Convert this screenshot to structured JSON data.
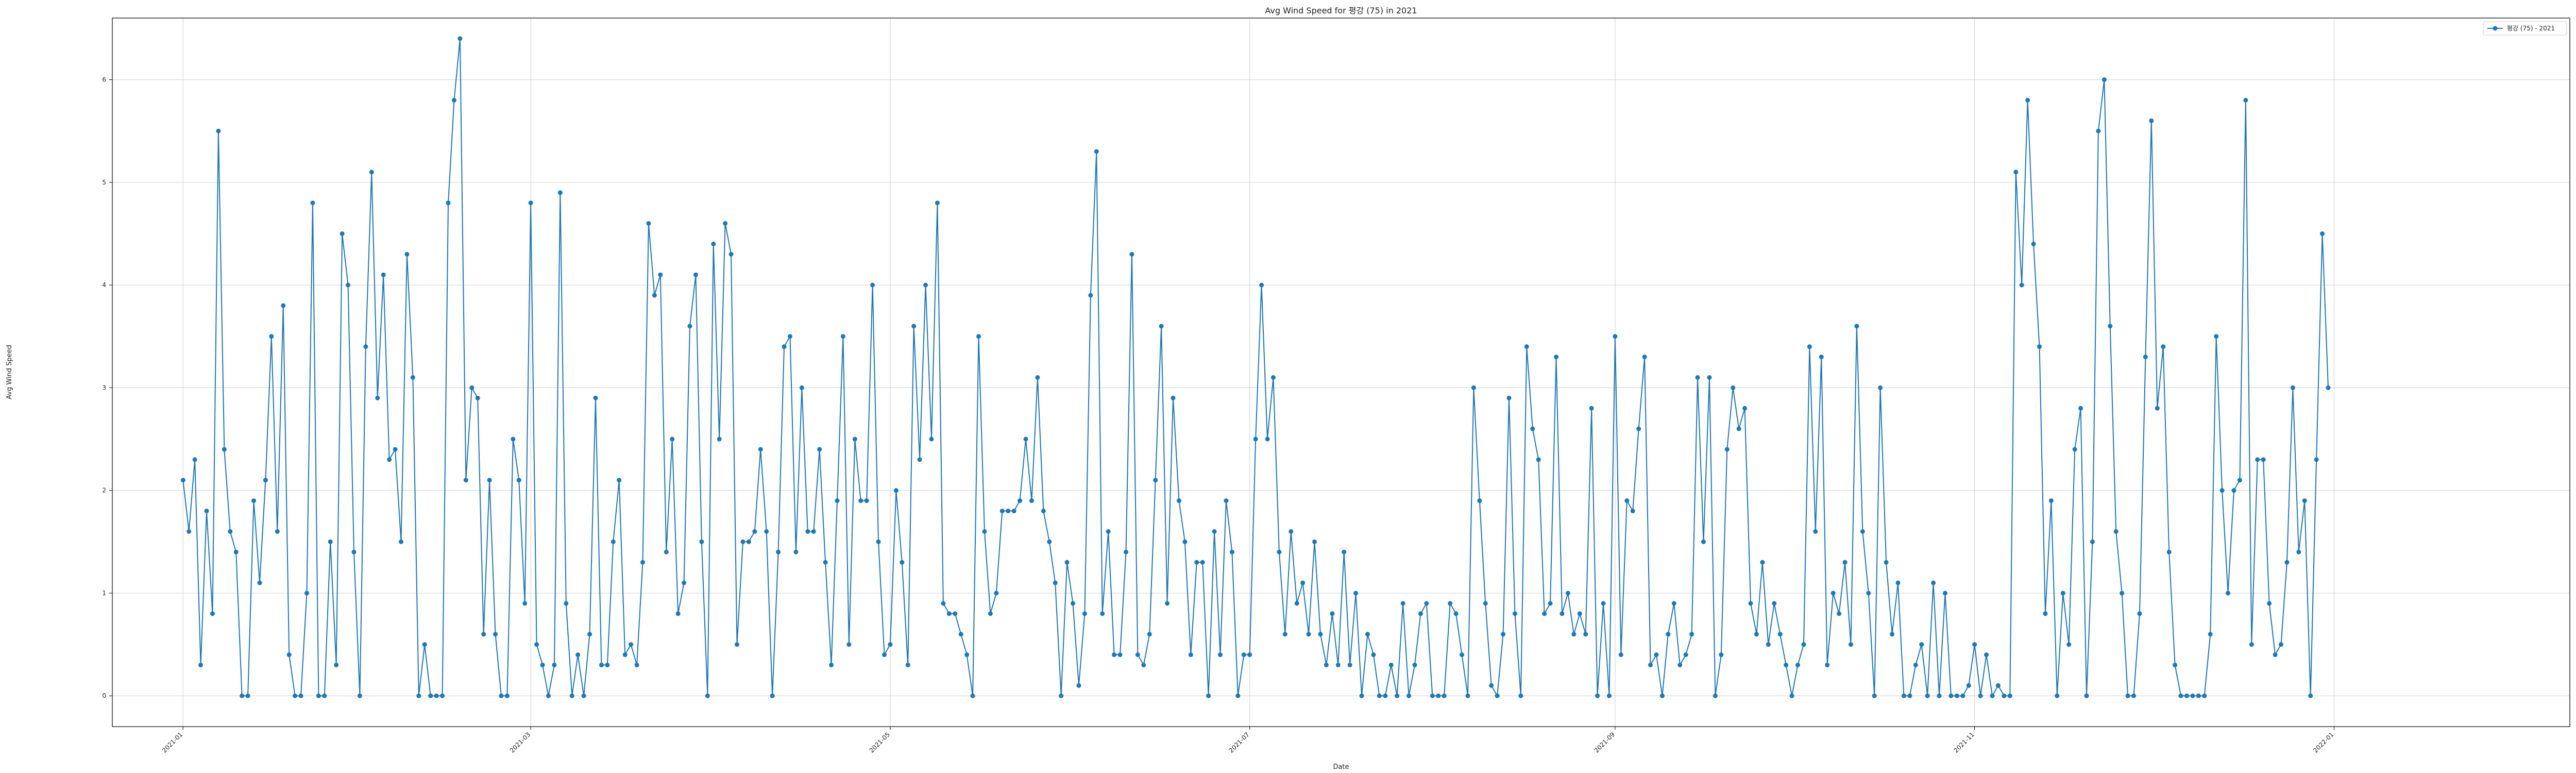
{
  "colors": {
    "line": "#1f77b4",
    "grid": "#d0d0d0",
    "axis": "#000000"
  },
  "chart_data": {
    "type": "line",
    "title": "Avg Wind Speed for 평강 (75) in 2021",
    "xlabel": "Date",
    "ylabel": "Avg Wind Speed",
    "grid": true,
    "legend_position": "top-right",
    "xlim": [
      "2020-12-20",
      "2022-02-10"
    ],
    "ylim": [
      -0.3,
      6.6
    ],
    "yticks": [
      0,
      1,
      2,
      3,
      4,
      5,
      6
    ],
    "xticks": [
      {
        "date": "2021-01-01",
        "label": "2021-01"
      },
      {
        "date": "2021-03-01",
        "label": "2021-03"
      },
      {
        "date": "2021-05-01",
        "label": "2021-05"
      },
      {
        "date": "2021-07-01",
        "label": "2021-07"
      },
      {
        "date": "2021-09-01",
        "label": "2021-09"
      },
      {
        "date": "2021-11-01",
        "label": "2021-11"
      },
      {
        "date": "2022-01-01",
        "label": "2022-01"
      }
    ],
    "start_date": "2021-01-01",
    "series": [
      {
        "name": "평강 (75) - 2021",
        "values": [
          2.1,
          1.6,
          2.3,
          0.3,
          1.8,
          0.8,
          5.5,
          2.4,
          1.6,
          1.4,
          0.0,
          0.0,
          1.9,
          1.1,
          2.1,
          3.5,
          1.6,
          3.8,
          0.4,
          0.0,
          0.0,
          1.0,
          4.8,
          0.0,
          0.0,
          1.5,
          0.3,
          4.5,
          4.0,
          1.4,
          0.0,
          3.4,
          5.1,
          2.9,
          4.1,
          2.3,
          2.4,
          1.5,
          4.3,
          3.1,
          0.0,
          0.5,
          0.0,
          0.0,
          0.0,
          4.8,
          5.8,
          6.4,
          2.1,
          3.0,
          2.9,
          0.6,
          2.1,
          0.6,
          0.0,
          0.0,
          2.5,
          2.1,
          0.9,
          4.8,
          0.5,
          0.3,
          0.0,
          0.3,
          4.9,
          0.9,
          0.0,
          0.4,
          0.0,
          0.6,
          2.9,
          0.3,
          0.3,
          1.5,
          2.1,
          0.4,
          0.5,
          0.3,
          1.3,
          4.6,
          3.9,
          4.1,
          1.4,
          2.5,
          0.8,
          1.1,
          3.6,
          4.1,
          1.5,
          0.0,
          4.4,
          2.5,
          4.6,
          4.3,
          0.5,
          1.5,
          1.5,
          1.6,
          2.4,
          1.6,
          0.0,
          1.4,
          3.4,
          3.5,
          1.4,
          3.0,
          1.6,
          1.6,
          2.4,
          1.3,
          0.3,
          1.9,
          3.5,
          0.5,
          2.5,
          1.9,
          1.9,
          4.0,
          1.5,
          0.4,
          0.5,
          2.0,
          1.3,
          0.3,
          3.6,
          2.3,
          4.0,
          2.5,
          4.8,
          0.9,
          0.8,
          0.8,
          0.6,
          0.4,
          0.0,
          3.5,
          1.6,
          0.8,
          1.0,
          1.8,
          1.8,
          1.8,
          1.9,
          2.5,
          1.9,
          3.1,
          1.8,
          1.5,
          1.1,
          0.0,
          1.3,
          0.9,
          0.1,
          0.8,
          3.9,
          5.3,
          0.8,
          1.6,
          0.4,
          0.4,
          1.4,
          4.3,
          0.4,
          0.3,
          0.6,
          2.1,
          3.6,
          0.9,
          2.9,
          1.9,
          1.5,
          0.4,
          1.3,
          1.3,
          0.0,
          1.6,
          0.4,
          1.9,
          1.4,
          0.0,
          0.4,
          0.4,
          2.5,
          4.0,
          2.5,
          3.1,
          1.4,
          0.6,
          1.6,
          0.9,
          1.1,
          0.6,
          1.5,
          0.6,
          0.3,
          0.8,
          0.3,
          1.4,
          0.3,
          1.0,
          0.0,
          0.6,
          0.4,
          0.0,
          0.0,
          0.3,
          0.0,
          0.9,
          0.0,
          0.3,
          0.8,
          0.9,
          0.0,
          0.0,
          0.0,
          0.9,
          0.8,
          0.4,
          0.0,
          3.0,
          1.9,
          0.9,
          0.1,
          0.0,
          0.6,
          2.9,
          0.8,
          0.0,
          3.4,
          2.6,
          2.3,
          0.8,
          0.9,
          3.3,
          0.8,
          1.0,
          0.6,
          0.8,
          0.6,
          2.8,
          0.0,
          0.9,
          0.0,
          3.5,
          0.4,
          1.9,
          1.8,
          2.6,
          3.3,
          0.3,
          0.4,
          0.0,
          0.6,
          0.9,
          0.3,
          0.4,
          0.6,
          3.1,
          1.5,
          3.1,
          0.0,
          0.4,
          2.4,
          3.0,
          2.6,
          2.8,
          0.9,
          0.6,
          1.3,
          0.5,
          0.9,
          0.6,
          0.3,
          0.0,
          0.3,
          0.5,
          3.4,
          1.6,
          3.3,
          0.3,
          1.0,
          0.8,
          1.3,
          0.5,
          3.6,
          1.6,
          1.0,
          0.0,
          3.0,
          1.3,
          0.6,
          1.1,
          0.0,
          0.0,
          0.3,
          0.5,
          0.0,
          1.1,
          0.0,
          1.0,
          0.0,
          0.0,
          0.0,
          0.1,
          0.5,
          0.0,
          0.4,
          0.0,
          0.1,
          0.0,
          0.0,
          5.1,
          4.0,
          5.8,
          4.4,
          3.4,
          0.8,
          1.9,
          0.0,
          1.0,
          0.5,
          2.4,
          2.8,
          0.0,
          1.5,
          5.5,
          6.0,
          3.6,
          1.6,
          1.0,
          0.0,
          0.0,
          0.8,
          3.3,
          5.6,
          2.8,
          3.4,
          1.4,
          0.3,
          0.0,
          0.0,
          0.0,
          0.0,
          0.0,
          0.6,
          3.5,
          2.0,
          1.0,
          2.0,
          2.1,
          5.8,
          0.5,
          2.3,
          2.3,
          0.9,
          0.4,
          0.5,
          1.3,
          3.0,
          1.4,
          1.9,
          0.0,
          2.3,
          4.5,
          3.0
        ]
      }
    ]
  }
}
